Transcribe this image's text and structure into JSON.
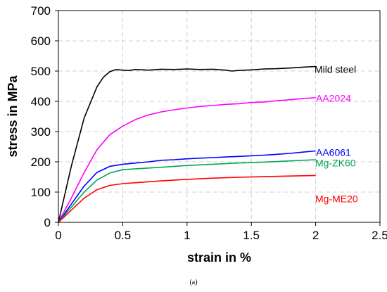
{
  "caption": "(a)",
  "chart_data": {
    "type": "line",
    "xlabel": "strain in %",
    "ylabel": "stress in MPa",
    "xlim": [
      0,
      2.5
    ],
    "ylim": [
      0,
      700
    ],
    "xticks": [
      0,
      0.5,
      1,
      1.5,
      2,
      2.5
    ],
    "yticks": [
      0,
      100,
      200,
      300,
      400,
      500,
      600,
      700
    ],
    "xtick_labels": [
      "0",
      "0.5",
      "1",
      "1.5",
      "2",
      "2.5"
    ],
    "ytick_labels": [
      "0",
      "100",
      "200",
      "300",
      "400",
      "500",
      "600",
      "700"
    ],
    "grid": true,
    "legend": "inline labels at line ends (right)",
    "series": [
      {
        "name": "Mild steel",
        "color": "#000000",
        "x": [
          0,
          0.1,
          0.2,
          0.3,
          0.35,
          0.4,
          0.45,
          0.5,
          0.55,
          0.6,
          0.7,
          0.8,
          0.9,
          1.0,
          1.1,
          1.2,
          1.3,
          1.35,
          1.4,
          1.5,
          1.6,
          1.7,
          1.8,
          1.9,
          2.0
        ],
        "y": [
          0,
          185,
          345,
          448,
          480,
          498,
          505,
          503,
          502,
          505,
          503,
          506,
          505,
          507,
          505,
          506,
          503,
          500,
          502,
          504,
          507,
          508,
          510,
          513,
          515
        ]
      },
      {
        "name": "AA2024",
        "color": "#ff00ff",
        "x": [
          0,
          0.1,
          0.2,
          0.3,
          0.4,
          0.5,
          0.6,
          0.7,
          0.8,
          0.9,
          1.0,
          1.1,
          1.2,
          1.3,
          1.4,
          1.5,
          1.6,
          1.7,
          1.8,
          1.9,
          2.0
        ],
        "y": [
          0,
          80,
          165,
          240,
          290,
          318,
          340,
          355,
          365,
          372,
          378,
          383,
          386,
          390,
          392,
          396,
          398,
          402,
          405,
          409,
          412
        ]
      },
      {
        "name": "AA6061",
        "color": "#0000ff",
        "x": [
          0,
          0.1,
          0.2,
          0.3,
          0.4,
          0.5,
          0.6,
          0.7,
          0.8,
          0.9,
          1.0,
          1.1,
          1.2,
          1.3,
          1.4,
          1.5,
          1.6,
          1.7,
          1.8,
          1.9,
          2.0
        ],
        "y": [
          0,
          60,
          120,
          165,
          185,
          192,
          196,
          200,
          205,
          207,
          210,
          212,
          214,
          216,
          218,
          220,
          222,
          225,
          228,
          232,
          236
        ]
      },
      {
        "name": "Mg-ZK60",
        "color": "#00a650",
        "x": [
          0,
          0.1,
          0.2,
          0.3,
          0.4,
          0.5,
          0.6,
          0.8,
          1.0,
          1.2,
          1.4,
          1.6,
          1.8,
          2.0
        ],
        "y": [
          0,
          50,
          100,
          140,
          163,
          174,
          177,
          182,
          188,
          192,
          196,
          199,
          203,
          207
        ]
      },
      {
        "name": "Mg-ME20",
        "color": "#ff0000",
        "x": [
          0,
          0.1,
          0.2,
          0.3,
          0.4,
          0.5,
          0.6,
          0.8,
          1.0,
          1.2,
          1.4,
          1.6,
          1.8,
          2.0
        ],
        "y": [
          0,
          40,
          80,
          108,
          122,
          128,
          131,
          137,
          142,
          146,
          149,
          151,
          153,
          155
        ]
      }
    ]
  }
}
